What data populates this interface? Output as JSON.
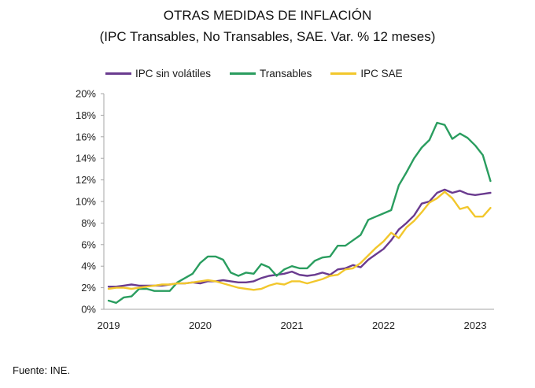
{
  "chart_data": {
    "type": "line",
    "title": "OTRAS MEDIDAS DE INFLACIÓN",
    "subtitle": "(IPC Transables, No Transables, SAE.  Var. % 12 meses)",
    "xlabel": "",
    "ylabel": "",
    "ylim": [
      0,
      20
    ],
    "yticks": [
      "0%",
      "2%",
      "4%",
      "6%",
      "8%",
      "10%",
      "12%",
      "14%",
      "16%",
      "18%",
      "20%"
    ],
    "ytick_values": [
      0,
      2,
      4,
      6,
      8,
      10,
      12,
      14,
      16,
      18,
      20
    ],
    "xticks": [
      "2019",
      "2020",
      "2021",
      "2022",
      "2023"
    ],
    "x_start": "2019-01",
    "x_frequency": "monthly",
    "x_count": 51,
    "grid": false,
    "legend_position": "top",
    "series": [
      {
        "name": "IPC sin volátiles",
        "color": "#6a3b8f",
        "values": [
          2.1,
          2.1,
          2.2,
          2.3,
          2.2,
          2.2,
          2.2,
          2.2,
          2.3,
          2.4,
          2.4,
          2.5,
          2.4,
          2.6,
          2.6,
          2.7,
          2.6,
          2.5,
          2.5,
          2.6,
          2.9,
          3.1,
          3.2,
          3.3,
          3.5,
          3.2,
          3.1,
          3.2,
          3.4,
          3.2,
          3.7,
          3.8,
          4.1,
          3.9,
          4.6,
          5.1,
          5.6,
          6.4,
          7.4,
          8.0,
          8.7,
          9.8,
          10.0,
          10.8,
          11.1,
          10.8,
          11.0,
          10.7,
          10.6,
          10.7,
          10.8
        ]
      },
      {
        "name": "Transables",
        "color": "#2a9d5f",
        "values": [
          0.8,
          0.6,
          1.1,
          1.2,
          1.9,
          1.9,
          1.7,
          1.7,
          1.7,
          2.5,
          2.9,
          3.3,
          4.3,
          4.9,
          4.9,
          4.6,
          3.4,
          3.1,
          3.4,
          3.3,
          4.2,
          3.9,
          3.1,
          3.7,
          4.0,
          3.8,
          3.8,
          4.5,
          4.8,
          4.9,
          5.9,
          5.9,
          6.4,
          6.9,
          8.3,
          8.6,
          8.9,
          9.2,
          11.5,
          12.7,
          14.0,
          15.0,
          15.7,
          17.3,
          17.1,
          15.8,
          16.3,
          15.9,
          15.2,
          14.3,
          11.9
        ]
      },
      {
        "name": "IPC SAE",
        "color": "#f2c72c",
        "values": [
          1.9,
          2.0,
          2.0,
          1.9,
          2.0,
          2.1,
          2.2,
          2.3,
          2.3,
          2.4,
          2.4,
          2.5,
          2.6,
          2.7,
          2.6,
          2.4,
          2.2,
          2.0,
          1.9,
          1.8,
          1.9,
          2.2,
          2.4,
          2.3,
          2.6,
          2.6,
          2.4,
          2.6,
          2.8,
          3.1,
          3.2,
          3.7,
          3.8,
          4.3,
          5.0,
          5.7,
          6.3,
          7.1,
          6.6,
          7.6,
          8.2,
          9.0,
          9.9,
          10.3,
          10.9,
          10.3,
          9.3,
          9.5,
          8.6,
          8.6,
          9.4
        ]
      }
    ]
  },
  "footer": {
    "source": "Fuente: INE."
  }
}
